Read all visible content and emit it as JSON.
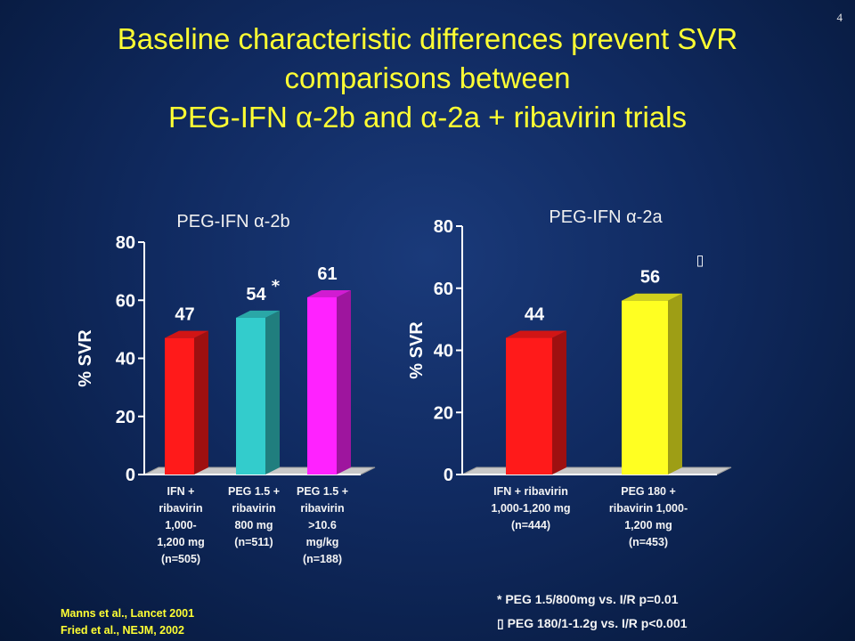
{
  "slide_number": "4",
  "title_lines": [
    "Baseline characteristic differences prevent SVR",
    "comparisons between",
    "PEG-IFN α-2b and α-2a + ribavirin trials"
  ],
  "colors": {
    "background": "#102a60",
    "title": "#ffff33",
    "text": "#f4f4f4",
    "red": "#ff1a1a",
    "cyan": "#33cccc",
    "magenta": "#ff22ff",
    "yellow": "#ffff22",
    "floor": "#c8c8c8"
  },
  "chart_data": [
    {
      "type": "bar",
      "title": "PEG-IFN α-2b",
      "ylabel": "% SVR",
      "ylim": [
        0,
        80
      ],
      "yticks": [
        0,
        20,
        40,
        60,
        80
      ],
      "categories": [
        [
          "IFN +",
          "ribavirin",
          "1,000-",
          "1,200 mg",
          "(n=505)"
        ],
        [
          "PEG 1.5 +",
          "ribavirin",
          "800 mg",
          "(n=511)"
        ],
        [
          "PEG 1.5 +",
          "ribavirin",
          ">10.6",
          "mg/kg",
          "(n=188)"
        ]
      ],
      "values": [
        47,
        54,
        61
      ],
      "bar_colors": [
        "#ff1a1a",
        "#33cccc",
        "#ff22ff"
      ],
      "annotations": [
        {
          "category_index": 1,
          "text": "*"
        }
      ]
    },
    {
      "type": "bar",
      "title": "PEG-IFN α-2a",
      "ylabel": "% SVR",
      "ylim": [
        0,
        80
      ],
      "yticks": [
        0,
        20,
        40,
        60,
        80
      ],
      "categories": [
        [
          "IFN + ribavirin",
          "1,000-1,200 mg",
          "(n=444)"
        ],
        [
          "PEG 180 +",
          "ribavirin 1,000-",
          "1,200 mg",
          "(n=453)"
        ]
      ],
      "values": [
        44,
        56
      ],
      "bar_colors": [
        "#ff1a1a",
        "#ffff22"
      ],
      "annotations": [
        {
          "category_index": 1,
          "text": "▯"
        }
      ]
    }
  ],
  "footnotes": [
    "* PEG 1.5/800mg vs. I/R  p=0.01",
    "▯ PEG 180/1-1.2g vs. I/R  p<0.001"
  ],
  "references": [
    "Manns et al., Lancet 2001",
    "Fried et al., NEJM, 2002"
  ]
}
